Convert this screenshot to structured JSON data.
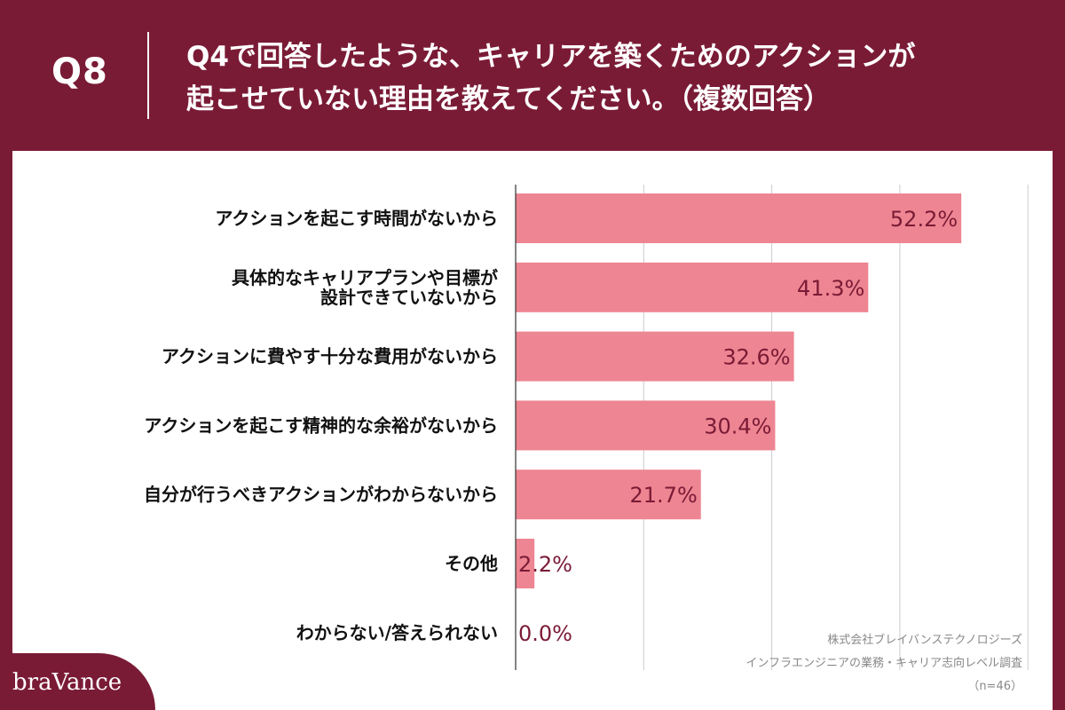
{
  "header": {
    "question_number": "Q8",
    "question_line1": "Q4で回答したような、キャリアを築くためのアクションが",
    "question_line2": "起こせていない理由を教えてください。（複数回答）"
  },
  "source": {
    "line1": "株式会社ブレイバンステクノロジーズ",
    "line2": "インフラエンジニアの業務・キャリア志向レベル調査",
    "line3": "（n=46）"
  },
  "logo": {
    "text": "braVance"
  },
  "colors": {
    "bar": "#ee8592",
    "value_text": "#7a1b36",
    "brand": "#7a1b36",
    "grid": "#cccccc"
  },
  "chart_data": {
    "type": "bar",
    "orientation": "horizontal",
    "categories": [
      [
        "アクションを起こす時間がないから"
      ],
      [
        "具体的なキャリアプランや目標が",
        "設計できていないから"
      ],
      [
        "アクションに費やす十分な費用がないから"
      ],
      [
        "アクションを起こす精神的な余裕がないから"
      ],
      [
        "自分が行うべきアクションがわからないから"
      ],
      [
        "その他"
      ],
      [
        "わからない/答えられない"
      ]
    ],
    "values": [
      52.2,
      41.3,
      32.6,
      30.4,
      21.7,
      2.2,
      0.0
    ],
    "value_labels": [
      "52.2%",
      "41.3%",
      "32.6%",
      "30.4%",
      "21.7%",
      "2.2%",
      "0.0%"
    ],
    "xlim": [
      0,
      60
    ],
    "grid": true,
    "gridline_step": 15
  }
}
